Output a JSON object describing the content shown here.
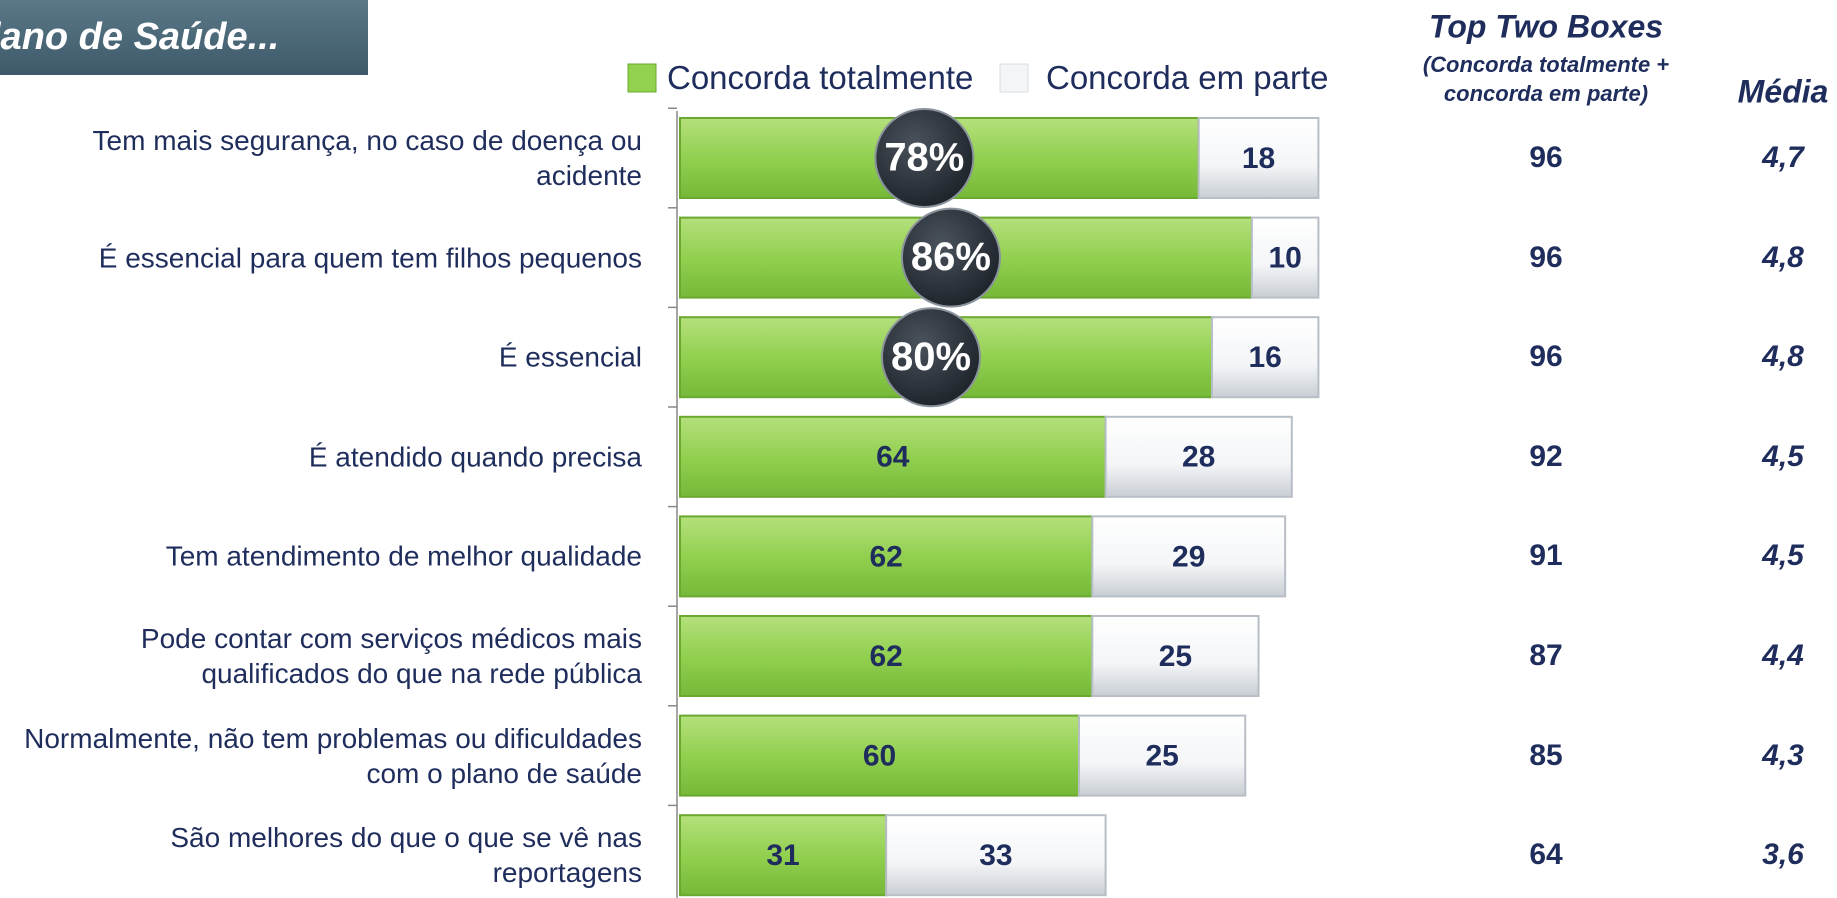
{
  "chart_data": {
    "type": "bar",
    "orientation": "horizontal",
    "stacked": true,
    "title": "lano de Saúde...",
    "categories": [
      "Tem mais segurança, no caso de doença ou acidente",
      "É essencial para quem tem filhos pequenos",
      "É essencial",
      "É atendido quando precisa",
      "Tem atendimento de melhor qualidade",
      "Pode contar com serviços médicos mais qualificados do que na rede pública",
      "Normalmente, não tem problemas ou dificuldades com o plano de saúde",
      "São melhores do que o que se vê nas reportagens"
    ],
    "series": [
      {
        "name": "Concorda totalmente",
        "color": "#92d050",
        "values": [
          78,
          86,
          80,
          64,
          62,
          62,
          60,
          31
        ],
        "value_labels": [
          "78%",
          "86%",
          "80%",
          "64",
          "62",
          "62",
          "60",
          "31"
        ]
      },
      {
        "name": "Concorda em parte",
        "color": "#f3f5f7",
        "values": [
          18,
          10,
          16,
          28,
          29,
          25,
          25,
          33
        ]
      }
    ],
    "xlim": [
      0,
      100
    ],
    "top_two": {
      "title": "Top Two Boxes",
      "subtitle": "(Concorda totalmente + concorda em parte)",
      "values": [
        96,
        96,
        96,
        92,
        91,
        87,
        85,
        64
      ]
    },
    "media": {
      "title": "Média",
      "values": [
        4.7,
        4.8,
        4.8,
        4.5,
        4.5,
        4.4,
        4.3,
        3.6
      ],
      "value_labels": [
        "4,7",
        "4,8",
        "4,8",
        "4,5",
        "4,5",
        "4,4",
        "4,3",
        "3,6"
      ]
    }
  }
}
